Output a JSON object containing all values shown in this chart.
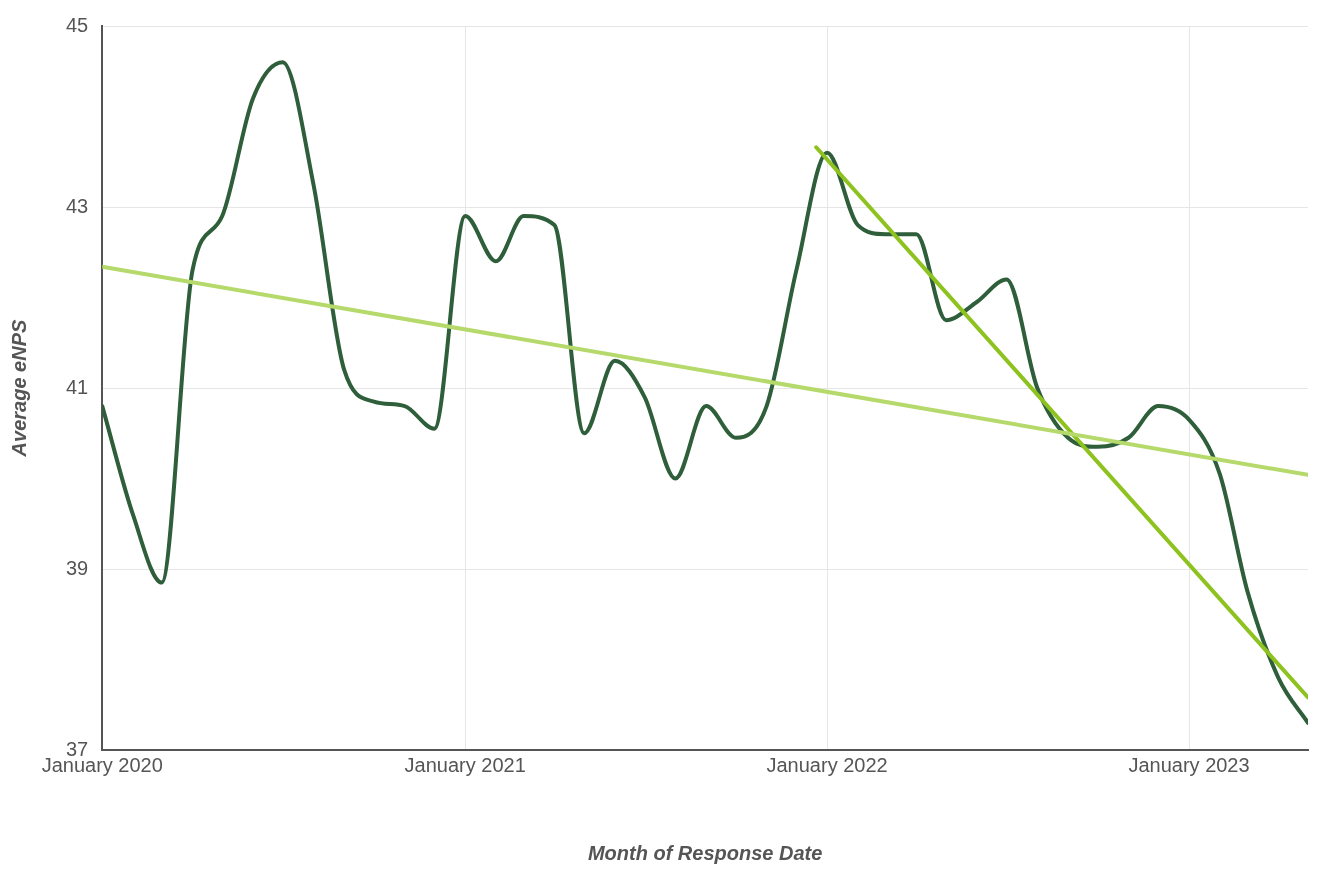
{
  "chart_data": {
    "type": "line",
    "xlabel": "Month of Response Date",
    "ylabel": "Average eNPS",
    "x": [
      "2020-01",
      "2020-02",
      "2020-03",
      "2020-04",
      "2020-05",
      "2020-06",
      "2020-07",
      "2020-08",
      "2020-09",
      "2020-10",
      "2020-11",
      "2020-12",
      "2021-01",
      "2021-02",
      "2021-03",
      "2021-04",
      "2021-05",
      "2021-06",
      "2021-07",
      "2021-08",
      "2021-09",
      "2021-10",
      "2021-11",
      "2021-12",
      "2022-01",
      "2022-02",
      "2022-03",
      "2022-04",
      "2022-05",
      "2022-06",
      "2022-07",
      "2022-08",
      "2022-09",
      "2022-10",
      "2022-11",
      "2022-12",
      "2023-01",
      "2023-02",
      "2023-03",
      "2023-04",
      "2023-05"
    ],
    "series": [
      {
        "color": "#2e5e3a",
        "values": [
          40.8,
          39.6,
          38.85,
          42.3,
          42.9,
          44.2,
          44.6,
          43.25,
          41.2,
          40.85,
          40.8,
          40.55,
          42.9,
          42.4,
          42.9,
          42.8,
          40.5,
          41.3,
          40.9,
          40.0,
          40.8,
          40.45,
          40.8,
          42.3,
          43.6,
          42.8,
          42.7,
          42.7,
          41.75,
          41.95,
          42.2,
          41.0,
          40.45,
          40.35,
          40.45,
          40.8,
          40.65,
          40.05,
          38.75,
          37.8,
          37.3
        ]
      },
      {
        "type": "line",
        "color": "#b5d96a",
        "x": [
          "2020-01",
          "2023-05"
        ],
        "values": [
          42.34,
          40.04
        ]
      },
      {
        "type": "line",
        "color": "#8dc21f",
        "x": [
          "2021-12-21",
          "2023-05"
        ],
        "values": [
          43.66,
          37.58
        ]
      }
    ],
    "xlim": [
      "2020-01",
      "2023-05"
    ],
    "xticks": [
      {
        "value": "2020-01",
        "label": "January 2020"
      },
      {
        "value": "2021-01",
        "label": "January 2021"
      },
      {
        "value": "2022-01",
        "label": "January 2022"
      },
      {
        "value": "2023-01",
        "label": "January 2023"
      }
    ],
    "ylim": [
      37,
      45
    ],
    "yticks": [
      37,
      39,
      41,
      43,
      45
    ],
    "grid": true,
    "marker": "none",
    "line_style": "solid"
  }
}
